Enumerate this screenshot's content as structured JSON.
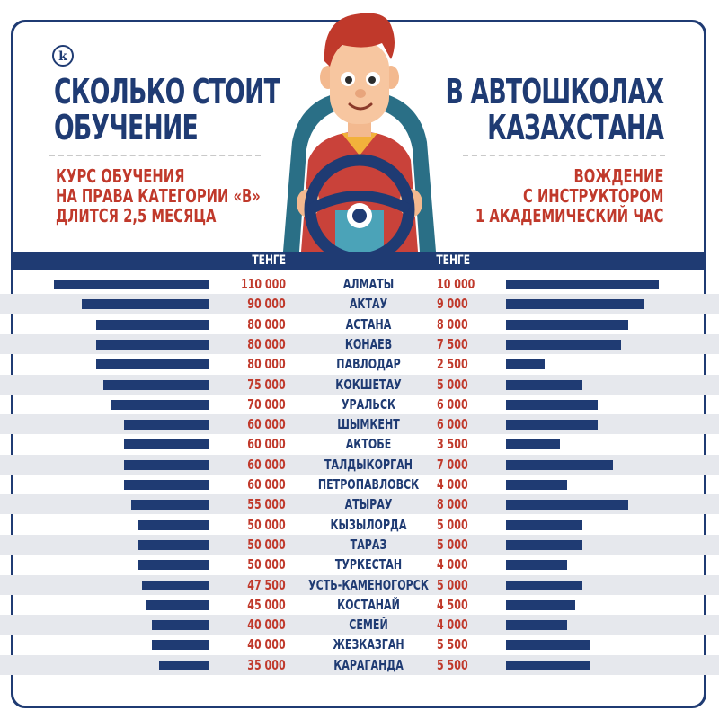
{
  "logo": "k",
  "header": {
    "title_left": [
      "СКОЛЬКО СТОИТ",
      "ОБУЧЕНИЕ"
    ],
    "title_right": [
      "В АВТОШКОЛАХ",
      "КАЗАХСТАНА"
    ],
    "sub_left": [
      "КУРС ОБУЧЕНИЯ",
      "НА ПРАВА КАТЕГОРИИ «В»",
      "ДЛИТСЯ 2,5 МЕСЯЦА"
    ],
    "sub_right": [
      "ВОЖДЕНИЕ",
      "С ИНСТРУКТОРОМ",
      "1 АКАДЕМИЧЕСКИЙ ЧАС"
    ],
    "col_left": "ТЕНГЕ",
    "col_right": "ТЕНГЕ"
  },
  "colors": {
    "navy": "#1f3b73",
    "red": "#c0392b",
    "stripe": "#e6e8ed"
  },
  "chart_data": {
    "type": "bar",
    "categories": [
      "АЛМАТЫ",
      "АКТАУ",
      "АСТАНА",
      "КОНАЕВ",
      "ПАВЛОДАР",
      "КОКШЕТАУ",
      "УРАЛЬСК",
      "ШЫМКЕНТ",
      "АКТОБЕ",
      "ТАЛДЫКОРГАН",
      "ПЕТРОПАВЛОВСК",
      "АТЫРАУ",
      "КЫЗЫЛОРДА",
      "ТАРАЗ",
      "ТУРКЕСТАН",
      "УСТЬ-КАМЕНОГОРСК",
      "КОСТАНАЙ",
      "СЕМЕЙ",
      "ЖЕЗКАЗГАН",
      "КАРАГАНДА"
    ],
    "series": [
      {
        "values": [
          110000,
          90000,
          80000,
          80000,
          80000,
          75000,
          70000,
          60000,
          60000,
          60000,
          60000,
          55000,
          50000,
          50000,
          50000,
          47500,
          45000,
          40000,
          40000,
          35000
        ],
        "labels": [
          "110 000",
          "90 000",
          "80 000",
          "80 000",
          "80 000",
          "75 000",
          "70 000",
          "60 000",
          "60 000",
          "60 000",
          "60 000",
          "55 000",
          "50 000",
          "50 000",
          "50 000",
          "47 500",
          "45 000",
          "40 000",
          "40 000",
          "35 000"
        ]
      },
      {
        "values": [
          10000,
          9000,
          8000,
          7500,
          2500,
          5000,
          6000,
          6000,
          3500,
          7000,
          4000,
          8000,
          5000,
          5000,
          4000,
          5000,
          4500,
          4000,
          5500,
          5500
        ],
        "labels": [
          "10 000",
          "9 000",
          "8 000",
          "7 500",
          "2 500",
          "5 000",
          "6 000",
          "6 000",
          "3 500",
          "7 000",
          "4 000",
          "8 000",
          "5 000",
          "5 000",
          "4 000",
          "5 000",
          "4 500",
          "4 000",
          "5 500",
          "5 500"
        ]
      }
    ]
  }
}
